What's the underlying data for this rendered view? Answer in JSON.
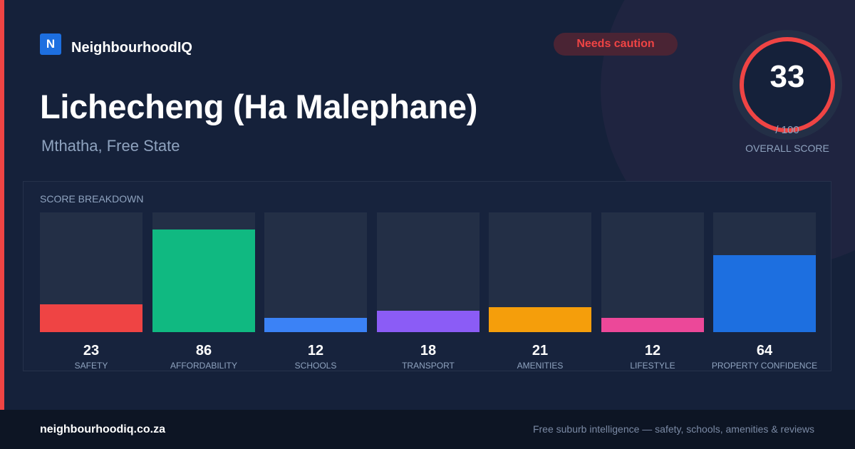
{
  "brand": {
    "logo_letter": "N",
    "name": "NeighbourhoodIQ"
  },
  "badge": {
    "label": "Needs caution",
    "color": "#ef4444"
  },
  "header": {
    "title": "Lichecheng (Ha Malephane)",
    "location": "Mthatha, Free State"
  },
  "overall_score": {
    "value": 33,
    "max_label": "/ 100",
    "label": "OVERALL SCORE",
    "ring_color": "#ef4444"
  },
  "breakdown": {
    "title": "SCORE BREAKDOWN",
    "items": [
      {
        "label": "SAFETY",
        "value": 23,
        "color": "#ef4444"
      },
      {
        "label": "AFFORDABILITY",
        "value": 86,
        "color": "#10b981"
      },
      {
        "label": "SCHOOLS",
        "value": 12,
        "color": "#3b82f6"
      },
      {
        "label": "TRANSPORT",
        "value": 18,
        "color": "#8b5cf6"
      },
      {
        "label": "AMENITIES",
        "value": 21,
        "color": "#f59e0b"
      },
      {
        "label": "LIFESTYLE",
        "value": 12,
        "color": "#ec4899"
      },
      {
        "label": "PROPERTY CONFIDENCE",
        "value": 64,
        "color": "#1d6fe0"
      }
    ]
  },
  "footer": {
    "url": "neighbourhoodiq.co.za",
    "tagline": "Free suburb intelligence — safety, schools, amenities & reviews"
  }
}
